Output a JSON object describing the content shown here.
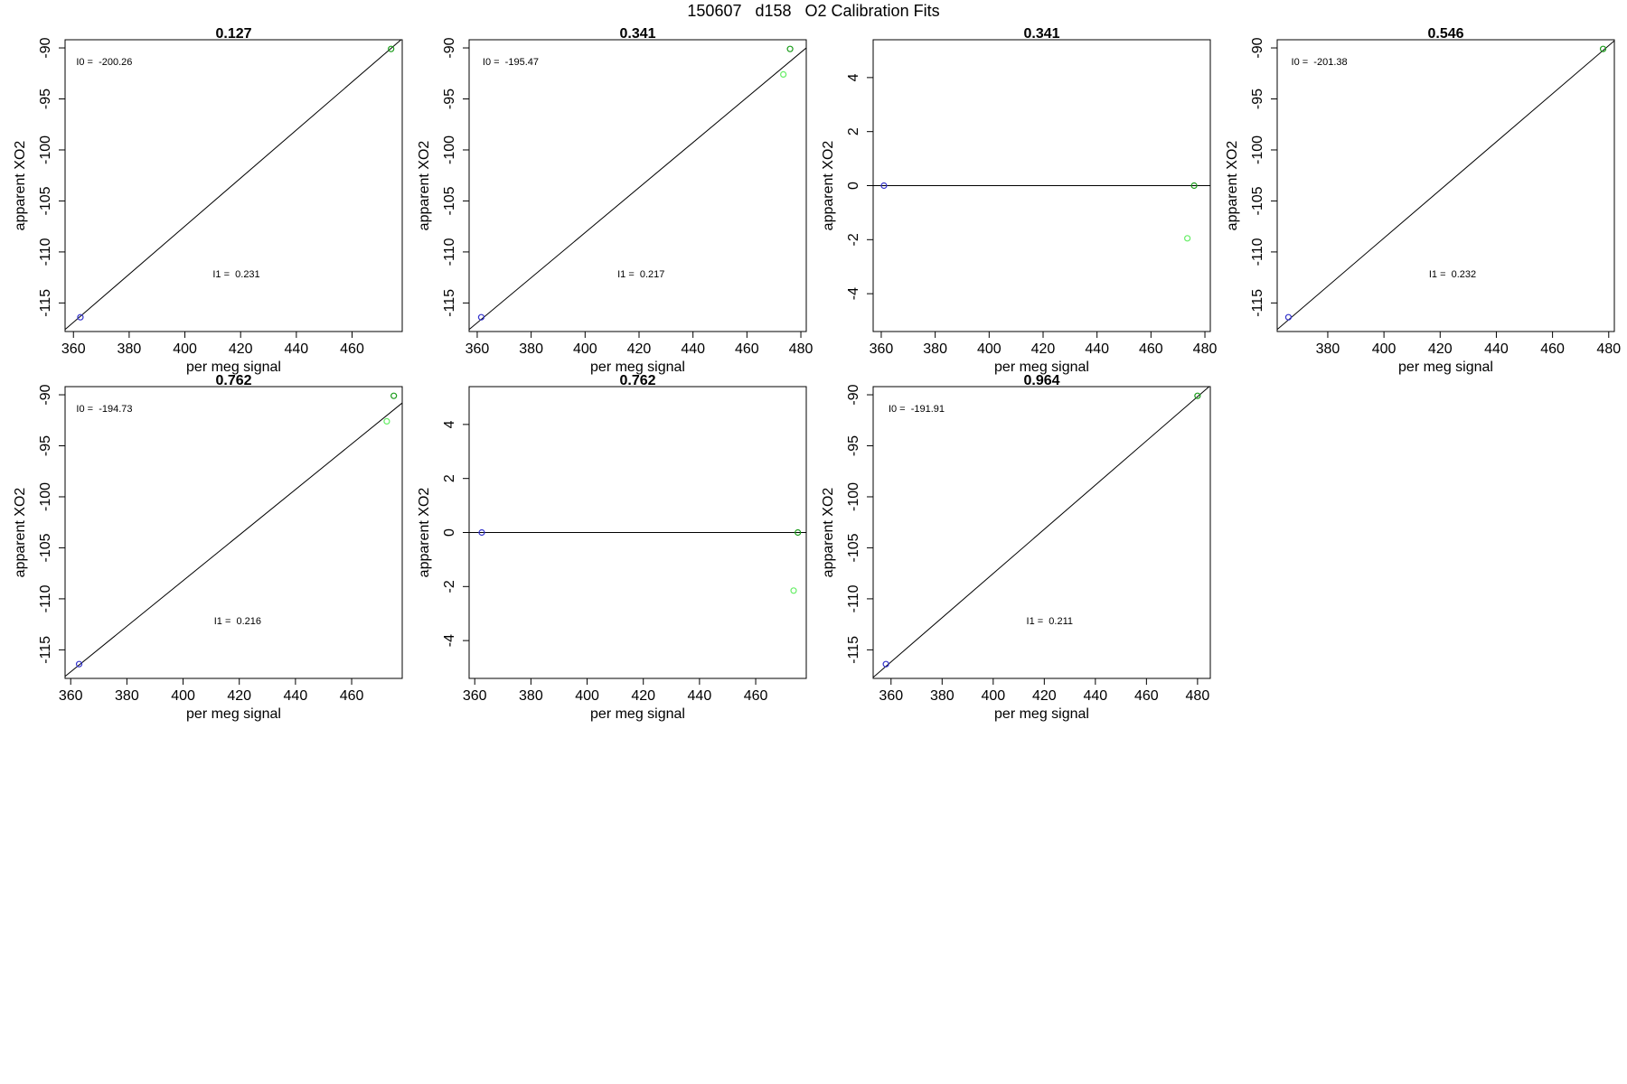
{
  "figure": {
    "title": "150607   d158   O2 Calibration Fits"
  },
  "colors": {
    "axis": "#000000",
    "fit_line": "#000000",
    "point_green": "#1a9c1a",
    "point_light_green": "#66ee66",
    "point_blue": "#3333cc"
  },
  "chart_data": [
    {
      "type": "scatter",
      "title": "0.127",
      "xlabel": "per meg signal",
      "ylabel": "apparent XO2",
      "xlim": [
        357,
        478
      ],
      "ylim": [
        -117.8,
        -89.2
      ],
      "xticks": [
        360,
        380,
        400,
        420,
        440,
        460
      ],
      "yticks": [
        -90,
        -95,
        -100,
        -105,
        -110,
        -115
      ],
      "fit_line": [
        [
          357,
          -117.6
        ],
        [
          478,
          -89.1
        ]
      ],
      "points": [
        {
          "x": 362.5,
          "y": -116.4,
          "color": "point_blue"
        },
        {
          "x": 474.0,
          "y": -90.1,
          "color": "point_green"
        }
      ],
      "annotations": [
        {
          "text": "I0 =  -200.26",
          "x": 361,
          "y": -91.7
        },
        {
          "text": "I1 =  0.231",
          "x": 410,
          "y": -112.5
        }
      ],
      "legend": "none",
      "grid": false
    },
    {
      "type": "scatter",
      "title": "0.341",
      "xlabel": "per meg signal",
      "ylabel": "apparent XO2",
      "xlim": [
        357,
        482
      ],
      "ylim": [
        -117.8,
        -89.2
      ],
      "xticks": [
        360,
        380,
        400,
        420,
        440,
        460,
        480
      ],
      "yticks": [
        -90,
        -95,
        -100,
        -105,
        -110,
        -115
      ],
      "fit_line": [
        [
          357,
          -117.6
        ],
        [
          482,
          -90.0
        ]
      ],
      "points": [
        {
          "x": 361.5,
          "y": -116.4,
          "color": "point_blue"
        },
        {
          "x": 473.5,
          "y": -92.6,
          "color": "point_light_green"
        },
        {
          "x": 476.0,
          "y": -90.1,
          "color": "point_green"
        }
      ],
      "annotations": [
        {
          "text": "I0 =  -195.47",
          "x": 362,
          "y": -91.7
        },
        {
          "text": "I1 =  0.217",
          "x": 412,
          "y": -112.5
        }
      ],
      "legend": "none",
      "grid": false
    },
    {
      "type": "scatter",
      "title": "0.341",
      "xlabel": "per meg signal",
      "ylabel": "apparent XO2",
      "xlim": [
        357,
        482
      ],
      "ylim": [
        -5.4,
        5.4
      ],
      "xticks": [
        360,
        380,
        400,
        420,
        440,
        460,
        480
      ],
      "yticks": [
        4,
        2,
        0,
        -2,
        -4
      ],
      "fit_line": [
        [
          357,
          0
        ],
        [
          482,
          0
        ]
      ],
      "points": [
        {
          "x": 361.0,
          "y": 0.0,
          "color": "point_blue"
        },
        {
          "x": 473.5,
          "y": -1.95,
          "color": "point_light_green"
        },
        {
          "x": 476.0,
          "y": 0.0,
          "color": "point_green"
        }
      ],
      "annotations": [],
      "legend": "none",
      "grid": false
    },
    {
      "type": "scatter",
      "title": "0.546",
      "xlabel": "per meg signal",
      "ylabel": "apparent XO2",
      "xlim": [
        362,
        482
      ],
      "ylim": [
        -117.8,
        -89.2
      ],
      "xticks": [
        380,
        400,
        420,
        440,
        460,
        480
      ],
      "yticks": [
        -90,
        -95,
        -100,
        -105,
        -110,
        -115
      ],
      "fit_line": [
        [
          362,
          -117.6
        ],
        [
          482,
          -89.3
        ]
      ],
      "points": [
        {
          "x": 366.0,
          "y": -116.4,
          "color": "point_blue"
        },
        {
          "x": 478.0,
          "y": -90.1,
          "color": "point_green"
        }
      ],
      "annotations": [
        {
          "text": "I0 =  -201.38",
          "x": 367,
          "y": -91.7
        },
        {
          "text": "I1 =  0.232",
          "x": 416,
          "y": -112.5
        }
      ],
      "legend": "none",
      "grid": false
    },
    {
      "type": "scatter",
      "title": "0.762",
      "xlabel": "per meg signal",
      "ylabel": "apparent XO2",
      "xlim": [
        358,
        478
      ],
      "ylim": [
        -117.8,
        -89.2
      ],
      "xticks": [
        360,
        380,
        400,
        420,
        440,
        460
      ],
      "yticks": [
        -90,
        -95,
        -100,
        -105,
        -110,
        -115
      ],
      "fit_line": [
        [
          358,
          -117.6
        ],
        [
          478,
          -90.8
        ]
      ],
      "points": [
        {
          "x": 363.0,
          "y": -116.4,
          "color": "point_blue"
        },
        {
          "x": 472.5,
          "y": -92.6,
          "color": "point_light_green"
        },
        {
          "x": 475.0,
          "y": -90.1,
          "color": "point_green"
        }
      ],
      "annotations": [
        {
          "text": "I0 =  -194.73",
          "x": 362,
          "y": -91.7
        },
        {
          "text": "I1 =  0.216",
          "x": 411,
          "y": -112.5
        }
      ],
      "legend": "none",
      "grid": false
    },
    {
      "type": "scatter",
      "title": "0.762",
      "xlabel": "per meg signal",
      "ylabel": "apparent XO2",
      "xlim": [
        358,
        478
      ],
      "ylim": [
        -5.4,
        5.4
      ],
      "xticks": [
        360,
        380,
        400,
        420,
        440,
        460
      ],
      "yticks": [
        4,
        2,
        0,
        -2,
        -4
      ],
      "fit_line": [
        [
          358,
          0
        ],
        [
          478,
          0
        ]
      ],
      "points": [
        {
          "x": 362.5,
          "y": 0.0,
          "color": "point_blue"
        },
        {
          "x": 473.5,
          "y": -2.15,
          "color": "point_light_green"
        },
        {
          "x": 475.0,
          "y": 0.0,
          "color": "point_green"
        }
      ],
      "annotations": [],
      "legend": "none",
      "grid": false
    },
    {
      "type": "scatter",
      "title": "0.964",
      "xlabel": "per meg signal",
      "ylabel": "apparent XO2",
      "xlim": [
        353,
        485
      ],
      "ylim": [
        -117.8,
        -89.2
      ],
      "xticks": [
        360,
        380,
        400,
        420,
        440,
        460,
        480
      ],
      "yticks": [
        -90,
        -95,
        -100,
        -105,
        -110,
        -115
      ],
      "fit_line": [
        [
          353,
          -117.7
        ],
        [
          485,
          -89.1
        ]
      ],
      "points": [
        {
          "x": 358.0,
          "y": -116.4,
          "color": "point_blue"
        },
        {
          "x": 480.0,
          "y": -90.1,
          "color": "point_green"
        }
      ],
      "annotations": [
        {
          "text": "I0 =  -191.91",
          "x": 359,
          "y": -91.7
        },
        {
          "text": "I1 =  0.211",
          "x": 413,
          "y": -112.5
        }
      ],
      "legend": "none",
      "grid": false
    }
  ]
}
